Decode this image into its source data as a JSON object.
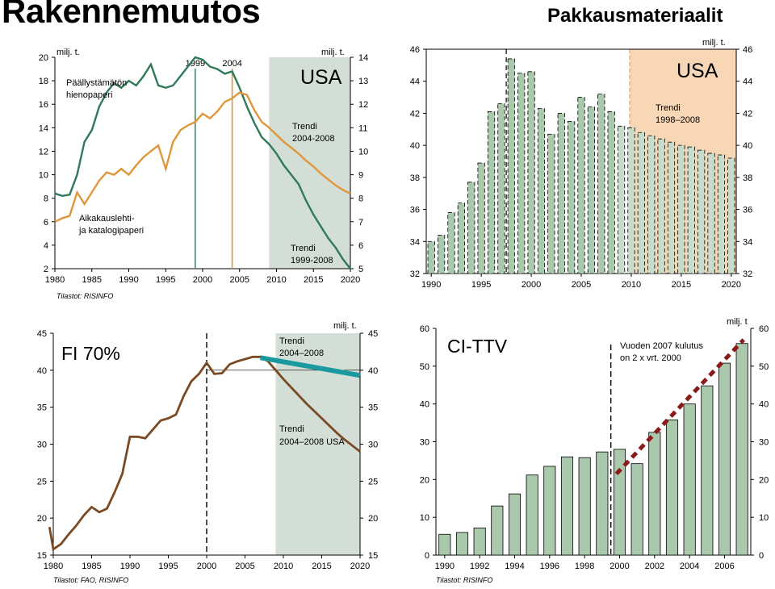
{
  "page": {
    "title_left": "Rakennemuutos",
    "title_right": "Pakkausmateriaalit"
  },
  "chart_data": [
    {
      "type": "line",
      "region_label": "USA",
      "unit_left": "milj. t.",
      "unit_right": "milj. t.",
      "source": "Tilastot: RISINFO",
      "x_ticks": [
        "1980",
        "1985",
        "1990",
        "1995",
        "2000",
        "2005",
        "2010",
        "2015",
        "2020"
      ],
      "xlim": [
        1980,
        2020
      ],
      "y_left_ticks": [
        "2",
        "4",
        "6",
        "8",
        "10",
        "12",
        "14",
        "16",
        "18",
        "20"
      ],
      "ylim_left": [
        2,
        20
      ],
      "y_right_ticks": [
        "5",
        "6",
        "7",
        "8",
        "9",
        "10",
        "11",
        "12",
        "13",
        "14"
      ],
      "ylim_right": [
        5,
        14
      ],
      "vlines": [
        {
          "x": 1999,
          "label": "1999",
          "color": "#3f8f62"
        },
        {
          "x": 2004,
          "label": "2004",
          "color": "#e0963a"
        }
      ],
      "shade": [
        2009,
        2020
      ],
      "series": [
        {
          "name": "Päällystämätön hienopaperi",
          "color": "#2f7a58",
          "axis": "right",
          "x": [
            1980,
            1981,
            1982,
            1983,
            1984,
            1985,
            1986,
            1987,
            1988,
            1989,
            1990,
            1991,
            1992,
            1993,
            1994,
            1995,
            1996,
            1997,
            1998,
            1999,
            2000,
            2001,
            2002,
            2003,
            2004,
            2005,
            2006,
            2007,
            2008,
            2009,
            2010,
            2011,
            2012,
            2013,
            2014,
            2015,
            2016,
            2017,
            2018,
            2019,
            2020
          ],
          "values": [
            8.2,
            8.1,
            8.15,
            9.0,
            10.4,
            10.9,
            11.9,
            12.5,
            12.9,
            12.7,
            13.0,
            12.8,
            13.2,
            13.7,
            12.8,
            12.7,
            12.8,
            13.2,
            13.6,
            14.0,
            13.9,
            13.6,
            13.5,
            13.3,
            13.4,
            12.7,
            11.9,
            11.2,
            10.6,
            10.3,
            9.9,
            9.4,
            9.0,
            8.6,
            7.9,
            7.3,
            6.8,
            6.3,
            5.9,
            5.4,
            5.0
          ]
        },
        {
          "name": "Aikakauslehti- ja katalogipaperi",
          "color": "#e0963a",
          "axis": "left",
          "x": [
            1980,
            1981,
            1982,
            1983,
            1984,
            1985,
            1986,
            1987,
            1988,
            1989,
            1990,
            1991,
            1992,
            1993,
            1994,
            1995,
            1996,
            1997,
            1998,
            1999,
            2000,
            2001,
            2002,
            2003,
            2004,
            2005,
            2006,
            2007,
            2008,
            2009,
            2010,
            2011,
            2012,
            2013,
            2014,
            2015,
            2016,
            2017,
            2018,
            2019,
            2020
          ],
          "values": [
            6.0,
            6.3,
            6.5,
            8.5,
            7.5,
            8.5,
            9.5,
            10.2,
            10.0,
            10.5,
            10.0,
            10.8,
            11.5,
            12.0,
            12.5,
            10.5,
            12.8,
            13.8,
            14.2,
            14.5,
            15.2,
            14.8,
            15.4,
            16.2,
            16.5,
            17.0,
            16.8,
            15.5,
            14.5,
            14.0,
            13.4,
            12.8,
            12.3,
            11.8,
            11.2,
            10.7,
            10.1,
            9.6,
            9.1,
            8.7,
            8.4
          ]
        }
      ],
      "annotations": [
        "Päällystämätön hienopaperi",
        "Aikakauslehti- ja katalogipaperi",
        "Trendi 2004-2008",
        "Trendi 1999-2008"
      ]
    },
    {
      "type": "bar",
      "region_label": "USA",
      "unit": "milj. t.",
      "x_ticks": [
        "1990",
        "1995",
        "2000",
        "2005",
        "2010",
        "2015",
        "2020"
      ],
      "y_ticks": [
        "32",
        "34",
        "36",
        "38",
        "40",
        "42",
        "44",
        "46"
      ],
      "ylim": [
        32,
        46
      ],
      "categories": [
        "1990",
        "1991",
        "1992",
        "1993",
        "1994",
        "1995",
        "1996",
        "1997",
        "1998",
        "1999",
        "2000",
        "2001",
        "2002",
        "2003",
        "2004",
        "2005",
        "2006",
        "2007",
        "2008",
        "2009",
        "2010",
        "2011",
        "2012",
        "2013",
        "2014",
        "2015",
        "2016",
        "2017",
        "2018",
        "2019",
        "2020"
      ],
      "values": [
        34.0,
        34.4,
        35.8,
        36.4,
        37.7,
        38.9,
        42.1,
        42.6,
        45.4,
        44.5,
        44.6,
        42.3,
        40.7,
        42.0,
        41.5,
        43.0,
        42.4,
        43.2,
        42.1,
        41.2,
        41.1,
        40.8,
        40.6,
        40.4,
        40.2,
        40.0,
        39.9,
        39.7,
        39.5,
        39.4,
        39.2
      ],
      "estimated_from": "2009",
      "shade": [
        "2010",
        "2020"
      ],
      "vline": "1997",
      "annotations": [
        "Trendi 1998–2008"
      ]
    },
    {
      "type": "line",
      "region_label": "FI 70%",
      "unit": "milj. t.",
      "source": "Tilastot: FAO, RISINFO",
      "x_ticks": [
        "1980",
        "1985",
        "1990",
        "1995",
        "2000",
        "2005",
        "2010",
        "2015",
        "2020"
      ],
      "xlim": [
        1980,
        2020
      ],
      "y_ticks": [
        "15",
        "20",
        "25",
        "30",
        "35",
        "40",
        "45"
      ],
      "ylim": [
        15,
        45
      ],
      "vline": 2000,
      "shade": [
        2009,
        2020
      ],
      "x": [
        1979.5,
        1980,
        1981,
        1982,
        1983,
        1984,
        1985,
        1986,
        1987,
        1988,
        1989,
        1990,
        1991,
        1992,
        1993,
        1994,
        1995,
        1996,
        1997,
        1998,
        1999,
        2000,
        2001,
        2002,
        2003,
        2004,
        2005,
        2006,
        2007,
        2008,
        2009,
        2010,
        2011,
        2012,
        2013,
        2014,
        2015,
        2016,
        2017,
        2018,
        2019,
        2020
      ],
      "values": [
        18.8,
        15.8,
        16.5,
        17.8,
        19.0,
        20.4,
        21.5,
        20.8,
        21.3,
        23.5,
        26.0,
        31.0,
        31.0,
        30.8,
        32.0,
        33.2,
        33.5,
        34.0,
        36.5,
        38.5,
        39.5,
        41.0,
        39.5,
        39.6,
        40.8,
        41.2,
        41.5,
        41.8,
        41.8,
        41.2,
        40.0,
        38.8,
        37.7,
        36.6,
        35.5,
        34.5,
        33.5,
        32.5,
        31.5,
        30.6,
        29.8,
        29.0
      ],
      "trend_line": {
        "x": [
          2007,
          2020
        ],
        "values": [
          41.7,
          39.3
        ],
        "color": "#1a9aa0"
      },
      "annotations": [
        "Trendi 2004–2008",
        "Trendi 2004–2008 USA"
      ]
    },
    {
      "type": "bar",
      "region_label": "CI-TTV",
      "unit": "milj. t",
      "source": "Tilastot: RISINFO",
      "x_ticks": [
        "1990",
        "1992",
        "1994",
        "1996",
        "1998",
        "2000",
        "2002",
        "2004",
        "2006"
      ],
      "y_ticks": [
        "0",
        "10",
        "20",
        "30",
        "40",
        "50",
        "60"
      ],
      "ylim": [
        0,
        60
      ],
      "categories": [
        "1990",
        "1991",
        "1992",
        "1993",
        "1994",
        "1995",
        "1996",
        "1997",
        "1998",
        "1999",
        "2000",
        "2001",
        "2002",
        "2003",
        "2004",
        "2005",
        "2006",
        "2007"
      ],
      "values": [
        5.5,
        6.0,
        7.2,
        13.0,
        16.2,
        21.2,
        23.5,
        26.0,
        25.8,
        27.3,
        28.0,
        24.2,
        32.5,
        35.8,
        40.0,
        44.8,
        50.8,
        56.0
      ],
      "vline": "1999.5",
      "dotted_trend": {
        "x": [
          "2000",
          "2007"
        ],
        "values": [
          21.5,
          57.0
        ],
        "color": "#8b1a1a"
      },
      "annotations": [
        "Vuoden 2007 kulutus on 2 x vrt. 2000"
      ]
    }
  ]
}
